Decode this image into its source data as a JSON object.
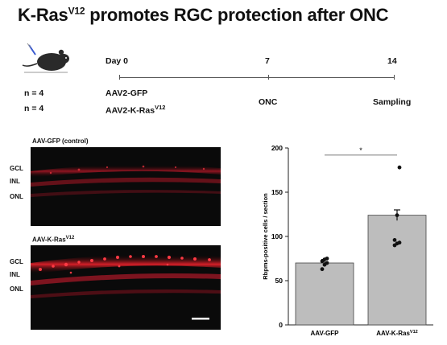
{
  "title": {
    "main": "K-Ras",
    "sup": "V12",
    "rest": " promotes RGC protection after ONC"
  },
  "schematic": {
    "mouse_icon": "mouse-injection-icon",
    "day_labels": [
      "Day 0",
      "7",
      "14"
    ],
    "groups": [
      {
        "n": "n = 4",
        "treatment": "AAV2-GFP",
        "sup": ""
      },
      {
        "n": "n = 4",
        "treatment": "AAV2-K-Ras",
        "sup": "V12"
      }
    ],
    "events": {
      "onc": "ONC",
      "sampling": "Sampling"
    }
  },
  "panels": [
    {
      "title": "AAV-GFP (control)",
      "title_sup": "",
      "layers": [
        "GCL",
        "INL",
        "ONL"
      ],
      "brightness": "low"
    },
    {
      "title": "AAV-K-Ras",
      "title_sup": "V12",
      "layers": [
        "GCL",
        "INL",
        "ONL"
      ],
      "brightness": "high"
    }
  ],
  "chart_data": {
    "type": "bar",
    "categories": [
      "AAV-GFP",
      "AAV-K-Ras"
    ],
    "category_sups": [
      "",
      "V12"
    ],
    "values": [
      70,
      124
    ],
    "errors": [
      4,
      6
    ],
    "points": [
      [
        63,
        68,
        70,
        72,
        74,
        75
      ],
      [
        90,
        92,
        93,
        96,
        124,
        178
      ]
    ],
    "ylabel": "Rbpms-positive cells / section",
    "ylim": [
      0,
      200
    ],
    "yticks": [
      0,
      50,
      100,
      150,
      200
    ],
    "significance": "*",
    "colors": {
      "bar": "#bdbdbd",
      "error": "#111111",
      "point": "#111111"
    }
  },
  "colors": {
    "fluorescence": "#e0202a",
    "background": "#0a0a0a"
  }
}
